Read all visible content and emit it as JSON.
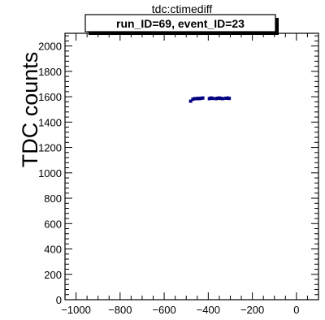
{
  "chart_data": {
    "type": "scatter",
    "title": "tdc:ctimediff",
    "subtitle": "run_ID=69, event_ID=23",
    "xlabel": "",
    "ylabel": "TDC counts",
    "xlim": [
      -1050,
      100
    ],
    "ylim": [
      0,
      2100
    ],
    "x_ticks": [
      -1000,
      -800,
      -600,
      -400,
      -200,
      0
    ],
    "y_ticks": [
      0,
      200,
      400,
      600,
      800,
      1000,
      1200,
      1400,
      1600,
      1800,
      2000
    ],
    "x_tick_labels": [
      "−1000",
      "−800",
      "−600",
      "−400",
      "−200",
      "0"
    ],
    "y_tick_labels": [
      "0",
      "200",
      "400",
      "600",
      "800",
      "1000",
      "1200",
      "1400",
      "1600",
      "1800",
      "2000"
    ],
    "marker_color": "#000080",
    "points": [
      {
        "x": -480,
        "y": 1565
      },
      {
        "x": -470,
        "y": 1580
      },
      {
        "x": -462,
        "y": 1585
      },
      {
        "x": -455,
        "y": 1585
      },
      {
        "x": -447,
        "y": 1587
      },
      {
        "x": -440,
        "y": 1585
      },
      {
        "x": -432,
        "y": 1588
      },
      {
        "x": -425,
        "y": 1590
      },
      {
        "x": -395,
        "y": 1585
      },
      {
        "x": -388,
        "y": 1590
      },
      {
        "x": -380,
        "y": 1587
      },
      {
        "x": -365,
        "y": 1585
      },
      {
        "x": -357,
        "y": 1588
      },
      {
        "x": -350,
        "y": 1590
      },
      {
        "x": -343,
        "y": 1587
      },
      {
        "x": -335,
        "y": 1585
      },
      {
        "x": -320,
        "y": 1588
      },
      {
        "x": -312,
        "y": 1590
      },
      {
        "x": -305,
        "y": 1587
      }
    ]
  }
}
